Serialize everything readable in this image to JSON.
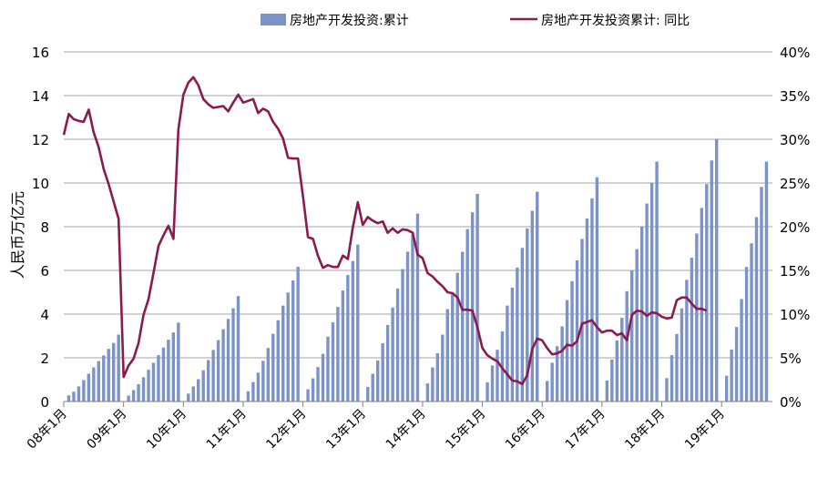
{
  "chart_data": {
    "type": "bar+line",
    "title": "",
    "legend": {
      "placement": "top",
      "items": [
        {
          "label": "房地产开发投资:累计",
          "kind": "bar",
          "color": "#7b93c9"
        },
        {
          "label": "房地产开发投资累计: 同比",
          "kind": "line",
          "color": "#8b1a4e"
        }
      ]
    },
    "ylabel_left": "人民币万亿元",
    "ylim_left": [
      0,
      16
    ],
    "yticks_left": [
      "0",
      "2",
      "4",
      "6",
      "8",
      "10",
      "12",
      "14",
      "16"
    ],
    "ylim_right": [
      0,
      40
    ],
    "yticks_right": [
      "0%",
      "5%",
      "10%",
      "15%",
      "20%",
      "25%",
      "30%",
      "35%",
      "40%"
    ],
    "grid": "horizontal",
    "x_tick_labels": [
      "08年1月",
      "09年1月",
      "10年1月",
      "11年1月",
      "12年1月",
      "13年1月",
      "14年1月",
      "15年1月",
      "16年1月",
      "17年1月",
      "18年1月",
      "19年1月"
    ],
    "series": [
      {
        "name": "房地产开发投资:累计",
        "type": "bar",
        "axis": "left",
        "unit": "人民币万亿元",
        "years": [
          {
            "year": "2008",
            "values": [
              0.28,
              0.45,
              0.69,
              0.98,
              1.27,
              1.56,
              1.85,
              2.11,
              2.41,
              2.68,
              3.06
            ]
          },
          {
            "year": "2009",
            "values": [
              0.27,
              0.52,
              0.79,
              1.11,
              1.45,
              1.77,
              2.12,
              2.47,
              2.83,
              3.16,
              3.61
            ]
          },
          {
            "year": "2010",
            "values": [
              0.36,
              0.69,
              1.02,
              1.43,
              1.9,
              2.36,
              2.81,
              3.31,
              3.78,
              4.27,
              4.83
            ]
          },
          {
            "year": "2011",
            "values": [
              0.47,
              0.89,
              1.32,
              1.86,
              2.45,
              3.1,
              3.72,
              4.39,
              4.99,
              5.54,
              6.17
            ]
          },
          {
            "year": "2012",
            "values": [
              0.56,
              1.06,
              1.58,
              2.18,
              2.97,
              3.62,
              4.33,
              5.08,
              5.79,
              6.43,
              7.18
            ]
          },
          {
            "year": "2013",
            "values": [
              0.67,
              1.27,
              1.88,
              2.67,
              3.5,
              4.3,
              5.17,
              6.06,
              6.86,
              7.62,
              8.6
            ]
          },
          {
            "year": "2014",
            "values": [
              0.83,
              1.56,
              2.21,
              3.06,
              4.23,
              4.97,
              5.89,
              6.85,
              7.89,
              8.66,
              9.5
            ]
          },
          {
            "year": "2015",
            "values": [
              0.88,
              1.65,
              2.37,
              3.21,
              4.39,
              5.21,
              6.13,
              7.03,
              7.92,
              8.73,
              9.6
            ]
          },
          {
            "year": "2016",
            "values": [
              0.94,
              1.77,
              2.53,
              3.44,
              4.64,
              5.51,
              6.46,
              7.44,
              8.38,
              9.3,
              10.26
            ]
          },
          {
            "year": "2017",
            "values": [
              0.96,
              1.92,
              2.79,
              3.83,
              5.05,
              6.0,
              6.97,
              8.01,
              9.06,
              10.01,
              10.98
            ]
          },
          {
            "year": "2018",
            "values": [
              1.07,
              2.12,
              3.09,
              4.26,
              5.57,
              6.58,
              7.69,
              8.86,
              9.95,
              11.03,
              12.02
            ]
          },
          {
            "year": "2019",
            "values": [
              1.18,
              2.38,
              3.41,
              4.69,
              6.16,
              7.24,
              8.44,
              9.82,
              10.98
            ]
          }
        ]
      },
      {
        "name": "房地产开发投资累计: 同比",
        "type": "line",
        "axis": "right",
        "unit": "%",
        "values": [
          30.5,
          32.9,
          32.3,
          32.1,
          32.0,
          33.4,
          30.8,
          29.1,
          26.6,
          24.9,
          22.9,
          20.9,
          2.8,
          4.1,
          4.9,
          6.7,
          9.9,
          11.7,
          14.7,
          17.8,
          19.0,
          20.1,
          18.6,
          31.1,
          35.1,
          36.5,
          37.1,
          36.2,
          34.6,
          34.0,
          33.6,
          33.7,
          33.8,
          33.2,
          34.2,
          35.1,
          34.2,
          34.4,
          34.6,
          33.0,
          33.5,
          33.2,
          32.0,
          31.2,
          30.1,
          27.9,
          27.8,
          27.8,
          23.5,
          18.8,
          18.6,
          16.7,
          15.3,
          15.6,
          15.4,
          15.4,
          16.7,
          16.3,
          19.9,
          22.8,
          20.2,
          21.1,
          20.7,
          20.4,
          20.6,
          19.3,
          19.8,
          19.3,
          19.7,
          19.6,
          19.3,
          16.8,
          16.4,
          14.7,
          14.3,
          13.7,
          13.2,
          12.5,
          12.4,
          11.9,
          10.5,
          10.5,
          10.4,
          8.5,
          6.1,
          5.3,
          4.9,
          4.6,
          3.8,
          3.1,
          2.4,
          2.3,
          2.0,
          3.0,
          6.0,
          7.2,
          7.0,
          6.1,
          5.4,
          5.5,
          5.8,
          6.5,
          6.4,
          6.9,
          8.9,
          9.1,
          9.3,
          8.5,
          7.9,
          8.1,
          8.1,
          7.6,
          7.8,
          7.0,
          9.9,
          10.4,
          10.3,
          9.8,
          10.2,
          10.1,
          9.7,
          9.5,
          9.6,
          11.6,
          11.9,
          11.9,
          11.2,
          10.6,
          10.6,
          10.4
        ]
      }
    ]
  }
}
